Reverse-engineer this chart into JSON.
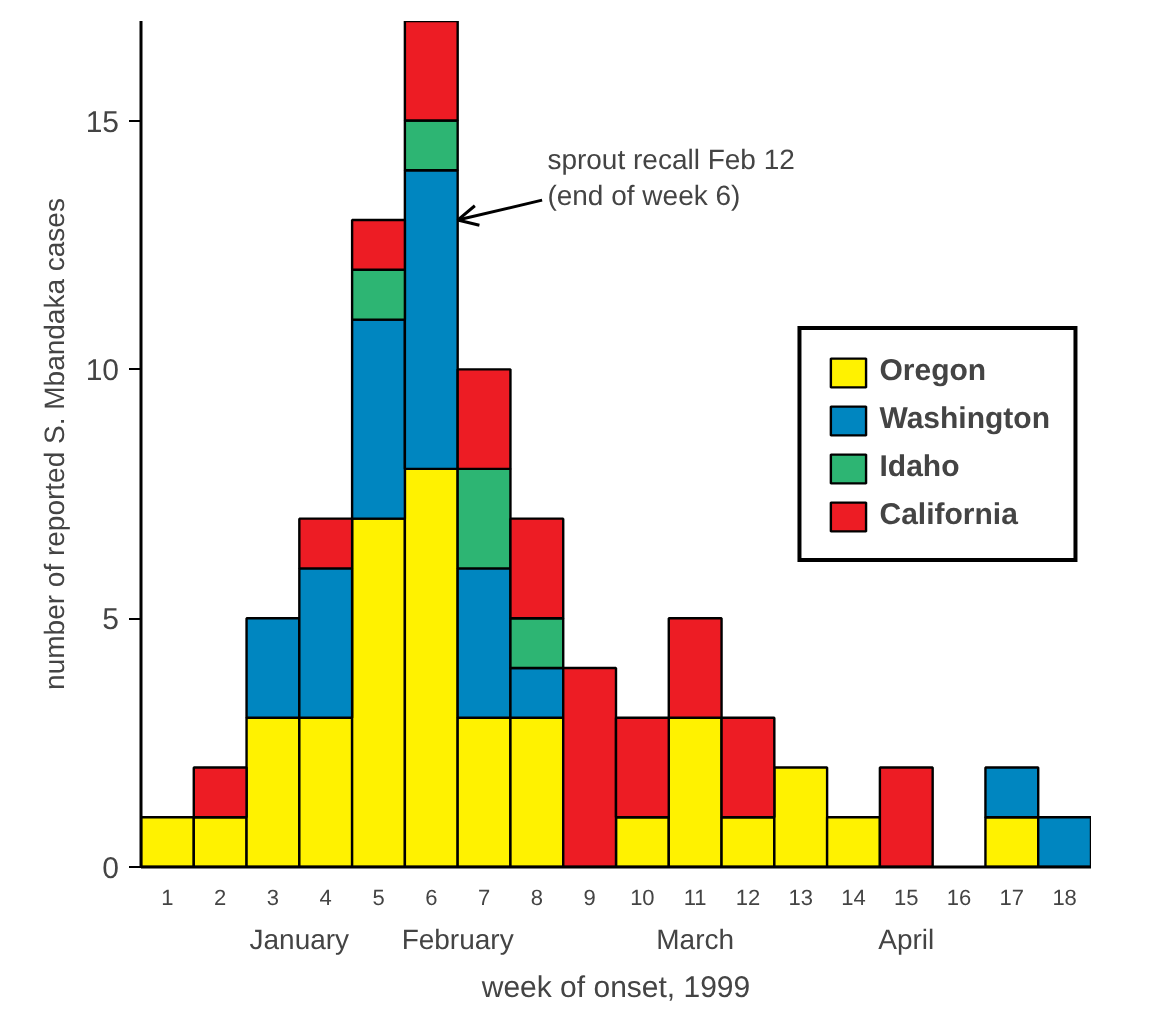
{
  "chart_data": {
    "type": "bar",
    "stacked": true,
    "xlabel": "week of onset, 1999",
    "ylabel": "number of reported S. Mbandaka cases",
    "x": [
      1,
      2,
      3,
      4,
      5,
      6,
      7,
      8,
      9,
      10,
      11,
      12,
      13,
      14,
      15,
      16,
      17,
      18
    ],
    "xlim": [
      0.5,
      18.5
    ],
    "xticks": [
      1,
      2,
      3,
      4,
      5,
      6,
      7,
      8,
      9,
      10,
      11,
      12,
      13,
      14,
      15,
      16,
      17,
      18
    ],
    "ylim": [
      0,
      17
    ],
    "yticks": [
      0,
      5,
      10,
      15
    ],
    "series": [
      {
        "name": "Oregon",
        "color": "#fff200",
        "values": [
          1,
          1,
          3,
          3,
          7,
          8,
          3,
          3,
          0,
          1,
          3,
          1,
          2,
          1,
          0,
          0,
          1,
          0
        ]
      },
      {
        "name": "Washington",
        "color": "#0086c0",
        "values": [
          0,
          0,
          2,
          3,
          4,
          6,
          3,
          1,
          0,
          0,
          0,
          0,
          0,
          0,
          0,
          0,
          1,
          1
        ]
      },
      {
        "name": "Idaho",
        "color": "#2db573",
        "values": [
          0,
          0,
          0,
          0,
          1,
          1,
          2,
          1,
          0,
          0,
          0,
          0,
          0,
          0,
          0,
          0,
          0,
          0
        ]
      },
      {
        "name": "California",
        "color": "#ed1c24",
        "values": [
          0,
          1,
          0,
          1,
          1,
          2,
          2,
          2,
          4,
          2,
          2,
          2,
          0,
          0,
          2,
          0,
          0,
          0
        ]
      }
    ],
    "annotations": [
      {
        "text": "sprout recall  Feb 12\n(end of week 6)",
        "x": 6.5,
        "y": 13
      },
      "January",
      "February",
      "March",
      "April"
    ],
    "legend": "right",
    "grid": false
  }
}
